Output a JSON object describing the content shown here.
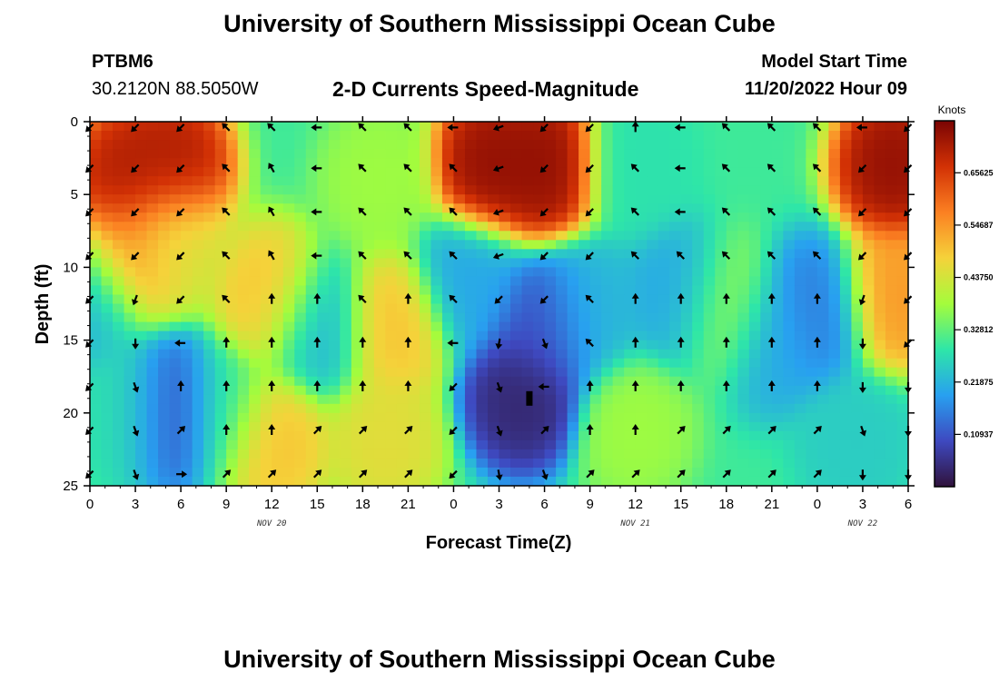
{
  "header": {
    "title": "University of Southern Mississippi Ocean Cube",
    "station": "PTBM6",
    "coords": "30.2120N  88.5050W",
    "subtitle": "2-D Currents Speed-Magnitude",
    "model_start_label": "Model Start Time",
    "model_start_value": "11/20/2022 Hour 09"
  },
  "footer": {
    "title": "University of Southern Mississippi Ocean Cube"
  },
  "chart_data": {
    "type": "heatmap",
    "title": "2-D Currents Speed-Magnitude",
    "xlabel": "Forecast Time(Z)",
    "ylabel": "Depth (ft)",
    "x_hours": [
      0,
      3,
      6,
      9,
      12,
      15,
      18,
      21,
      24,
      27,
      30,
      33,
      36,
      39,
      42,
      45,
      48,
      51,
      54
    ],
    "x_tick_labels": [
      "0",
      "3",
      "6",
      "9",
      "12",
      "15",
      "18",
      "21",
      "0",
      "3",
      "6",
      "9",
      "12",
      "15",
      "18",
      "21",
      "0",
      "3",
      "6"
    ],
    "date_labels": [
      {
        "hour": 12,
        "text": "NOV 20"
      },
      {
        "hour": 36,
        "text": "NOV 21"
      },
      {
        "hour": 51,
        "text": "NOV 22"
      }
    ],
    "y_ticks": [
      0,
      5,
      10,
      15,
      20,
      25
    ],
    "xlim": [
      0,
      54
    ],
    "ylim": [
      0,
      25
    ],
    "y_inverted": true,
    "colorbar": {
      "unit": "Knots",
      "min": 0,
      "max": 0.765,
      "tick_values": [
        0.10937,
        0.21875,
        0.32812,
        0.4375,
        0.54687,
        0.65625
      ],
      "tick_labels": [
        "0.10937",
        "0.21875",
        "0.32812",
        "0.43750",
        "0.54687",
        "0.65625"
      ],
      "colors": [
        "#30123b",
        "#3e49c0",
        "#28a0f0",
        "#2ee6a8",
        "#a4fc3c",
        "#f5d23a",
        "#fb8022",
        "#d23105",
        "#7a0403"
      ]
    },
    "speed_centers": [
      {
        "hour": 2.5,
        "depth": 4,
        "speed": 0.72
      },
      {
        "hour": 5.5,
        "depth": 3,
        "speed": 0.72
      },
      {
        "hour": 2.5,
        "depth": 9,
        "speed": 0.55
      },
      {
        "hour": 5.5,
        "depth": 8,
        "speed": 0.45
      },
      {
        "hour": 5.5,
        "depth": 20,
        "speed": 0.06
      },
      {
        "hour": 3.0,
        "depth": 20,
        "speed": 0.28
      },
      {
        "hour": 8.5,
        "depth": 20,
        "speed": 0.3
      },
      {
        "hour": 12.0,
        "depth": 12,
        "speed": 0.5
      },
      {
        "hour": 12.0,
        "depth": 22,
        "speed": 0.5
      },
      {
        "hour": 15.0,
        "depth": 14,
        "speed": 0.22
      },
      {
        "hour": 20.0,
        "depth": 14,
        "speed": 0.5
      },
      {
        "hour": 19.0,
        "depth": 4,
        "speed": 0.38
      },
      {
        "hour": 19.5,
        "depth": 22,
        "speed": 0.46
      },
      {
        "hour": 26.5,
        "depth": 3,
        "speed": 0.75
      },
      {
        "hour": 30.0,
        "depth": 3,
        "speed": 0.75
      },
      {
        "hour": 28.5,
        "depth": 19,
        "speed": 0.03
      },
      {
        "hour": 30.0,
        "depth": 14,
        "speed": 0.1
      },
      {
        "hour": 25.0,
        "depth": 11,
        "speed": 0.2
      },
      {
        "hour": 33.0,
        "depth": 13,
        "speed": 0.22
      },
      {
        "hour": 36.0,
        "depth": 21,
        "speed": 0.38
      },
      {
        "hour": 36.0,
        "depth": 3,
        "speed": 0.28
      },
      {
        "hour": 39.0,
        "depth": 12,
        "speed": 0.2
      },
      {
        "hour": 42.0,
        "depth": 13,
        "speed": 0.38
      },
      {
        "hour": 45.0,
        "depth": 15,
        "speed": 0.2
      },
      {
        "hour": 48.0,
        "depth": 13,
        "speed": 0.15
      },
      {
        "hour": 53.0,
        "depth": 3,
        "speed": 0.75
      },
      {
        "hour": 53.0,
        "depth": 12,
        "speed": 0.55
      },
      {
        "hour": 50.5,
        "depth": 22,
        "speed": 0.25
      },
      {
        "hour": 0.0,
        "depth": 12,
        "speed": 0.22
      }
    ],
    "base_speed": 0.3,
    "vector_hours": [
      0,
      3,
      6,
      9,
      12,
      15,
      18,
      21,
      24,
      27,
      30,
      33,
      36,
      39,
      42,
      45,
      48,
      51,
      54
    ],
    "vector_depths": [
      0.4,
      3.2,
      6.2,
      9.2,
      12.2,
      15.2,
      18.2,
      21.2,
      24.2
    ],
    "vector_directions": [
      [
        225,
        225,
        225,
        225,
        225,
        225,
        225,
        225,
        225
      ],
      [
        225,
        225,
        225,
        225,
        200,
        180,
        160,
        160,
        160
      ],
      [
        225,
        225,
        225,
        225,
        225,
        270,
        0,
        45,
        90
      ],
      [
        315,
        315,
        315,
        315,
        315,
        0,
        0,
        0,
        45
      ],
      [
        315,
        330,
        330,
        330,
        0,
        0,
        0,
        0,
        45
      ],
      [
        270,
        270,
        270,
        270,
        0,
        0,
        0,
        45,
        45
      ],
      [
        315,
        315,
        315,
        315,
        315,
        0,
        0,
        45,
        45
      ],
      [
        315,
        315,
        315,
        315,
        0,
        0,
        0,
        45,
        45
      ],
      [
        270,
        315,
        315,
        315,
        315,
        270,
        225,
        225,
        225
      ],
      [
        250,
        250,
        250,
        250,
        225,
        190,
        160,
        160,
        170
      ],
      [
        225,
        225,
        225,
        225,
        225,
        160,
        270,
        45,
        160
      ],
      [
        225,
        225,
        225,
        225,
        315,
        315,
        0,
        0,
        45
      ],
      [
        0,
        315,
        315,
        315,
        0,
        0,
        0,
        0,
        45
      ],
      [
        270,
        270,
        270,
        315,
        0,
        0,
        0,
        45,
        45
      ],
      [
        315,
        315,
        315,
        315,
        0,
        0,
        0,
        45,
        45
      ],
      [
        315,
        315,
        315,
        315,
        0,
        0,
        0,
        45,
        45
      ],
      [
        315,
        315,
        315,
        315,
        0,
        0,
        0,
        45,
        45
      ],
      [
        270,
        225,
        225,
        225,
        200,
        180,
        180,
        160,
        180
      ],
      [
        225,
        225,
        225,
        225,
        225,
        225,
        180,
        180,
        180
      ]
    ],
    "marker": {
      "hour": 29,
      "depth": 19.0,
      "shape": "bar"
    }
  }
}
